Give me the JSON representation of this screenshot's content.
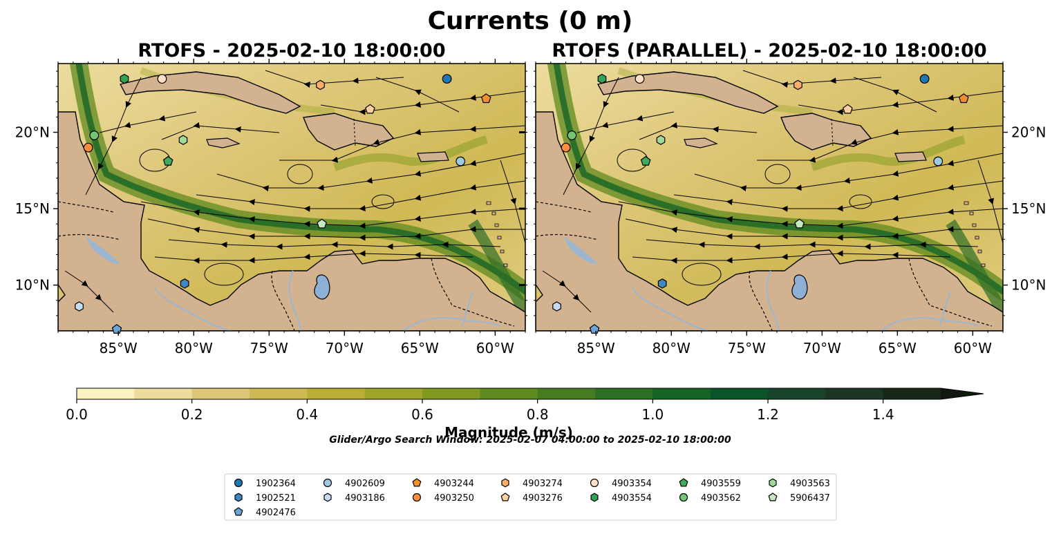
{
  "figure": {
    "title": "Currents (0 m)",
    "search_window": "Glider/Argo Search Window: 2025-02-07 04:00:00 to 2025-02-10 18:00:00"
  },
  "panels": [
    {
      "title": "RTOFS - 2025-02-10 18:00:00",
      "lon_ticks": [
        "85°W",
        "80°W",
        "75°W",
        "70°W",
        "65°W",
        "60°W"
      ],
      "lat_ticks": [
        "20°N",
        "15°N",
        "10°N"
      ]
    },
    {
      "title": "RTOFS (PARALLEL) - 2025-02-10 18:00:00",
      "lon_ticks": [
        "85°W",
        "80°W",
        "75°W",
        "70°W",
        "65°W",
        "60°W"
      ],
      "lat_ticks": [
        "20°N",
        "15°N",
        "10°N"
      ]
    }
  ],
  "map_extent": {
    "lon": [
      -89,
      -58
    ],
    "lat": [
      7,
      24.5
    ]
  },
  "colorbar": {
    "label": "Magnitude (m/s)",
    "ticks": [
      "0.0",
      "0.2",
      "0.4",
      "0.6",
      "0.8",
      "1.0",
      "1.2",
      "1.4"
    ],
    "range": [
      0,
      1.5
    ],
    "colors": [
      "#fbf2c3",
      "#ecdc9e",
      "#ddc677",
      "#d0b955",
      "#baad38",
      "#9ea52a",
      "#80991e",
      "#5f8a1f",
      "#467c22",
      "#2e6e26",
      "#156426",
      "#0b5328",
      "#16432a",
      "#1d3623",
      "#182818",
      "#10180f"
    ]
  },
  "colors": {
    "land": "#d3b38f",
    "lake": "#8fb0d6",
    "river": "#9cb6cf",
    "ocean_base": "#e7d28d"
  },
  "floats": [
    {
      "id": "1902364",
      "marker": "circle",
      "color": "#1f77b4",
      "lon": -63.2,
      "lat": 23.5
    },
    {
      "id": "1902521",
      "marker": "hexagon",
      "color": "#3f87c4",
      "lon": -80.6,
      "lat": 10.1
    },
    {
      "id": "4902476",
      "marker": "pentagon",
      "color": "#6aa4d8",
      "lon": -85.1,
      "lat": 7.1
    },
    {
      "id": "4902609",
      "marker": "circle",
      "color": "#9ecae1",
      "lon": -62.3,
      "lat": 18.1
    },
    {
      "id": "4903186",
      "marker": "hexagon",
      "color": "#c6dbef",
      "lon": -87.6,
      "lat": 8.6
    },
    {
      "id": "4903244",
      "marker": "pentagon",
      "color": "#f28e2b",
      "lon": -60.6,
      "lat": 22.2
    },
    {
      "id": "4903250",
      "marker": "circle",
      "color": "#fd8d3c",
      "lon": -87.0,
      "lat": 19.0
    },
    {
      "id": "4903274",
      "marker": "hexagon",
      "color": "#fdae6b",
      "lon": -71.6,
      "lat": 23.1
    },
    {
      "id": "4903276",
      "marker": "pentagon",
      "color": "#fdd0a2",
      "lon": -68.3,
      "lat": 21.5
    },
    {
      "id": "4903354",
      "marker": "circle",
      "color": "#fde0c5",
      "lon": -82.1,
      "lat": 23.5
    },
    {
      "id": "4903554",
      "marker": "hexagon",
      "color": "#31a354",
      "lon": -84.6,
      "lat": 23.5
    },
    {
      "id": "4903559",
      "marker": "pentagon",
      "color": "#41ab5d",
      "lon": -81.7,
      "lat": 18.1
    },
    {
      "id": "4903562",
      "marker": "circle",
      "color": "#74c476",
      "lon": -86.6,
      "lat": 19.8
    },
    {
      "id": "4903563",
      "marker": "hexagon",
      "color": "#a1d99b",
      "lon": -80.7,
      "lat": 19.5
    },
    {
      "id": "5906437",
      "marker": "pentagon",
      "color": "#c7e9c0",
      "lon": -71.5,
      "lat": 14.0
    }
  ]
}
